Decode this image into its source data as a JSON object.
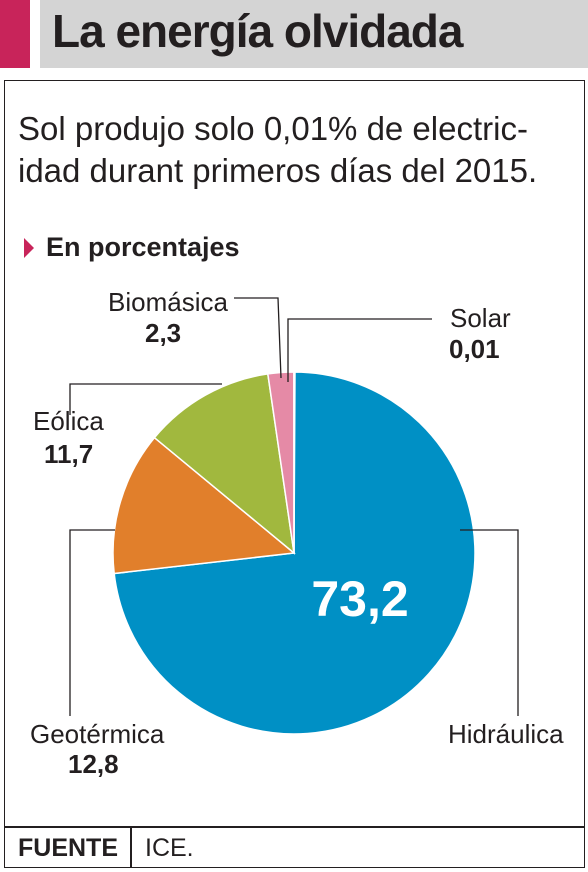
{
  "header": {
    "title": "La energía olvidada"
  },
  "subtitle": "Sol produjo solo 0,01% de electric-idad durant primeros días del 2015.",
  "unit_label": "En porcentajes",
  "footer": {
    "source_label": "FUENTE",
    "source_value": "ICE."
  },
  "colors": {
    "accent": "#c8245a",
    "title_background": "#d4d4d4",
    "hidraulica": "#0090c5",
    "geotermica": "#e17f2b",
    "eolica": "#a1b83e",
    "biomasica": "#e58aa6",
    "solar": "#f2c12e"
  },
  "chart_data": {
    "type": "pie",
    "title": "",
    "unit": "En porcentajes",
    "slices": [
      {
        "name": "Hidráulica",
        "value": 73.2,
        "label": "73,2"
      },
      {
        "name": "Geotérmica",
        "value": 12.8,
        "label": "12,8"
      },
      {
        "name": "Eólica",
        "value": 11.7,
        "label": "11,7"
      },
      {
        "name": "Biomásica",
        "value": 2.3,
        "label": "2,3"
      },
      {
        "name": "Solar",
        "value": 0.01,
        "label": "0,01"
      }
    ]
  }
}
